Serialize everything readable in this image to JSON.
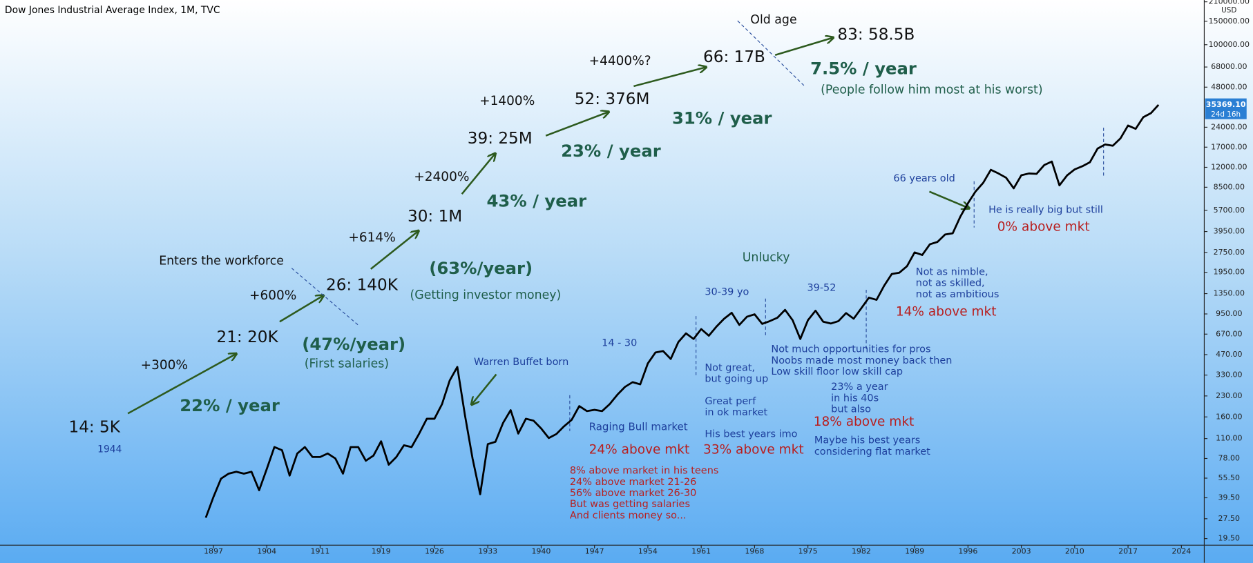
{
  "chart_data": {
    "type": "line",
    "title": "Dow Jones Industrial Average Index, 1M, TVC",
    "currency": "USD",
    "log_scale": true,
    "color": "#000000",
    "xlim": [
      1869,
      2027
    ],
    "ylim": [
      17.4,
      216700
    ],
    "xticks": [
      1897,
      1904,
      1911,
      1919,
      1926,
      1933,
      1940,
      1947,
      1954,
      1961,
      1968,
      1975,
      1982,
      1989,
      1996,
      2003,
      2010,
      2017,
      2024
    ],
    "yticks": [
      {
        "value": 19.5,
        "label": "19.50"
      },
      {
        "value": 27.5,
        "label": "27.50"
      },
      {
        "value": 39.5,
        "label": "39.50"
      },
      {
        "value": 55.5,
        "label": "55.50"
      },
      {
        "value": 78,
        "label": "78.00"
      },
      {
        "value": 110,
        "label": "110.00"
      },
      {
        "value": 160,
        "label": "160.00"
      },
      {
        "value": 230,
        "label": "230.00"
      },
      {
        "value": 330,
        "label": "330.00"
      },
      {
        "value": 470,
        "label": "470.00"
      },
      {
        "value": 670,
        "label": "670.00"
      },
      {
        "value": 950,
        "label": "950.00"
      },
      {
        "value": 1350,
        "label": "1350.00"
      },
      {
        "value": 1950,
        "label": "1950.00"
      },
      {
        "value": 2750,
        "label": "2750.00"
      },
      {
        "value": 3950,
        "label": "3950.00"
      },
      {
        "value": 5700,
        "label": "5700.00"
      },
      {
        "value": 8500,
        "label": "8500.00"
      },
      {
        "value": 12000,
        "label": "12000.00"
      },
      {
        "value": 17000,
        "label": "17000.00"
      },
      {
        "value": 24000,
        "label": "24000.00"
      },
      {
        "value": 48000,
        "label": "48000.00"
      },
      {
        "value": 68000,
        "label": "68000.00"
      },
      {
        "value": 100000,
        "label": "100000.00"
      },
      {
        "value": 150000,
        "label": "150000.00"
      },
      {
        "value": 210000,
        "label": "210000.00"
      }
    ],
    "price_marker": {
      "value": 35369.1,
      "label": "35369.10"
    },
    "countdown": "24d 16h",
    "x": [
      1896,
      1897,
      1898,
      1899,
      1900,
      1901,
      1902,
      1903,
      1904,
      1905,
      1906,
      1907,
      1908,
      1909,
      1910,
      1911,
      1912,
      1913,
      1914,
      1915,
      1916,
      1917,
      1918,
      1919,
      1920,
      1921,
      1922,
      1923,
      1924,
      1925,
      1926,
      1927,
      1928,
      1929,
      1930,
      1931,
      1932,
      1933,
      1934,
      1935,
      1936,
      1937,
      1938,
      1939,
      1940,
      1941,
      1942,
      1943,
      1944,
      1945,
      1946,
      1947,
      1948,
      1949,
      1950,
      1951,
      1952,
      1953,
      1954,
      1955,
      1956,
      1957,
      1958,
      1959,
      1960,
      1961,
      1962,
      1963,
      1964,
      1965,
      1966,
      1967,
      1968,
      1969,
      1970,
      1971,
      1972,
      1973,
      1974,
      1975,
      1976,
      1977,
      1978,
      1979,
      1980,
      1981,
      1982,
      1983,
      1984,
      1985,
      1986,
      1987,
      1988,
      1989,
      1990,
      1991,
      1992,
      1993,
      1994,
      1995,
      1996,
      1997,
      1998,
      1999,
      2000,
      2001,
      2002,
      2003,
      2004,
      2005,
      2006,
      2007,
      2008,
      2009,
      2010,
      2011,
      2012,
      2013,
      2014,
      2015,
      2016,
      2017,
      2018,
      2019,
      2020,
      2021
    ],
    "values": [
      28,
      40,
      55,
      60,
      62,
      60,
      62,
      45,
      65,
      95,
      90,
      58,
      85,
      95,
      80,
      80,
      85,
      78,
      60,
      95,
      95,
      75,
      82,
      105,
      70,
      80,
      98,
      95,
      120,
      155,
      155,
      200,
      300,
      380,
      165,
      78,
      42,
      100,
      104,
      144,
      180,
      120,
      155,
      150,
      131,
      111,
      119,
      136,
      152,
      193,
      177,
      181,
      177,
      200,
      235,
      269,
      292,
      281,
      404,
      488,
      500,
      436,
      584,
      679,
      616,
      731,
      652,
      763,
      874,
      969,
      786,
      905,
      944,
      800,
      839,
      890,
      1020,
      851,
      616,
      852,
      1005,
      831,
      805,
      839,
      964,
      875,
      1047,
      1259,
      1212,
      1547,
      1896,
      1939,
      2169,
      2753,
      2634,
      3169,
      3301,
      3754,
      3834,
      5117,
      6448,
      7908,
      9181,
      11497,
      10787,
      10021,
      8342,
      10454,
      10783,
      10718,
      12463,
      13265,
      8776,
      10428,
      11578,
      12218,
      13104,
      16577,
      17823,
      17425,
      19763,
      24719,
      23327,
      28538,
      30606,
      35369.1
    ],
    "annotations": [
      "14: 5K",
      "21: 20K",
      "26: 140K",
      "30: 1M",
      "39: 25M",
      "52: 376M",
      "66: 17B",
      "83: 58.5B",
      "+300%",
      "+600%",
      "+614%",
      "+2400%",
      "+1400%",
      "+4400%?",
      "Enters the workforce",
      "Old age",
      "22% / year",
      "(47%/year)",
      "(63%/year)",
      "43% / year",
      "23% / year",
      "31% / year",
      "7.5% / year",
      "Unlucky",
      "(First salaries)",
      "(Getting investor money)",
      "(People follow him most at his worst)",
      "1944",
      "Warren Buffet born",
      "14 - 30",
      "30-39 yo",
      "39-52",
      "66 years old",
      "Raging Bull market",
      "Not great,",
      "but going up",
      "Great perf",
      "in ok market",
      "His best years imo",
      "Not much opportunities for pros",
      "Noobs made most money back then",
      "Low skill floor low skill cap",
      "23% a year",
      "in his 40s",
      "but also",
      "Maybe his best years",
      "considering flat market",
      "He is really big but still",
      "Not as nimble,",
      "not as skilled,",
      "not as ambitious",
      "24% above mkt",
      "33% above mkt",
      "18% above mkt",
      "14% above mkt",
      "0% above mkt",
      "8% above market in his teens",
      "24% above market 21-26",
      "56% above market 26-30",
      "But was getting salaries",
      "And clients money so..."
    ]
  }
}
